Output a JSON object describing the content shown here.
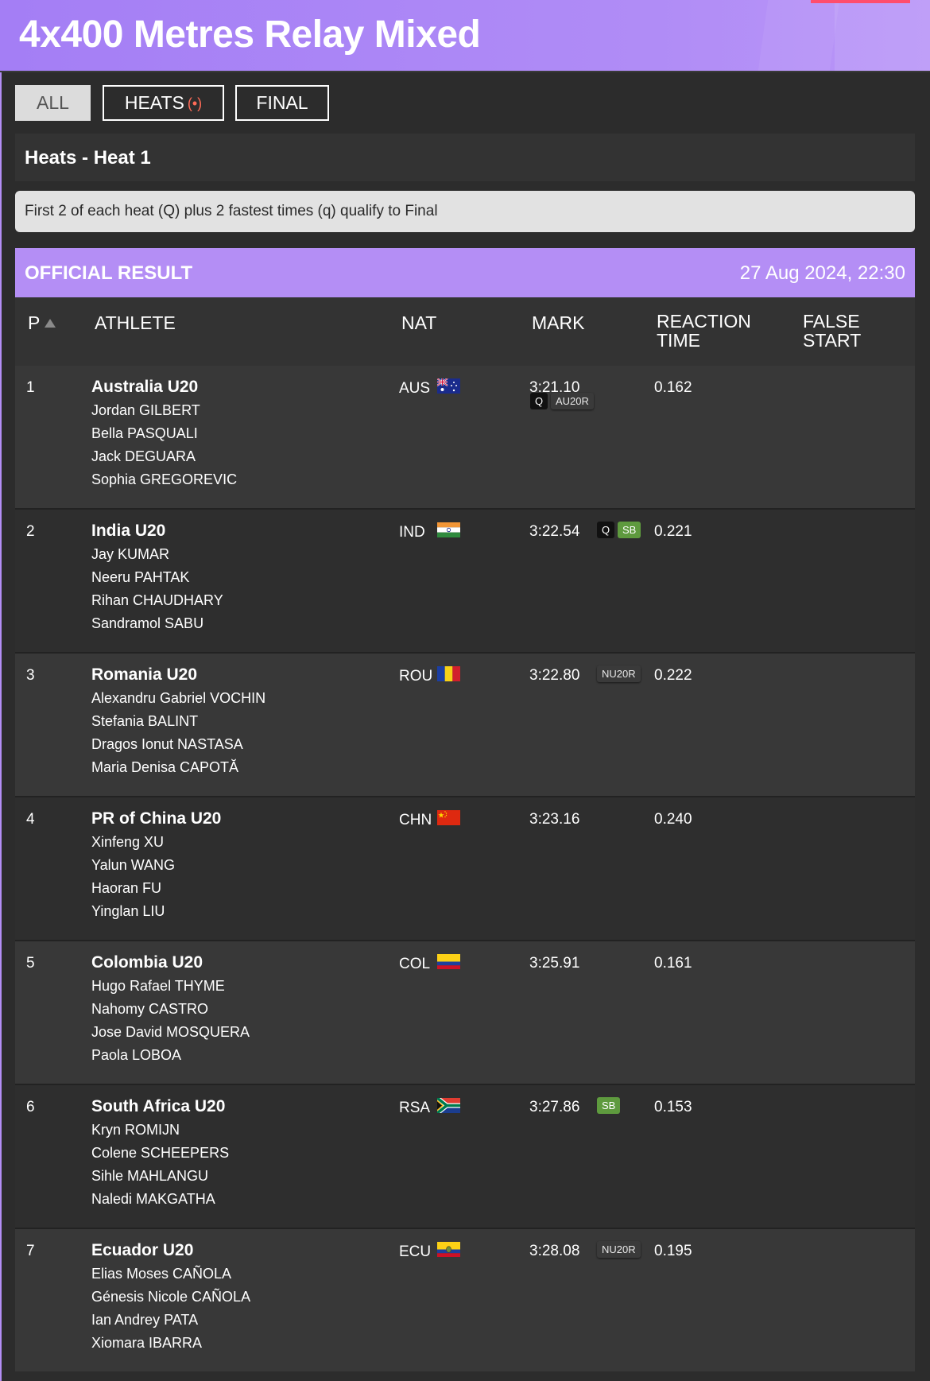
{
  "page": {
    "title": "4x400 Metres Relay Mixed"
  },
  "colors": {
    "accent": "#b48ef5",
    "live": "#ff6b57",
    "sb_badge": "#5e9a3e",
    "q_badge": "#111111"
  },
  "tabs": [
    {
      "label": "ALL",
      "active": true
    },
    {
      "label": "HEATS",
      "live_icon": "(•)"
    },
    {
      "label": "FINAL"
    }
  ],
  "heat": {
    "title": "Heats - Heat 1"
  },
  "info": {
    "text": "First 2 of each heat (Q) plus 2 fastest times (q) qualify to Final"
  },
  "result": {
    "label": "OFFICIAL RESULT",
    "datetime": "27 Aug 2024, 22:30"
  },
  "table": {
    "headers": {
      "p": "P",
      "athlete": "ATHLETE",
      "nat": "NAT",
      "mark": "MARK",
      "reaction_1": "REACTION",
      "reaction_2": "TIME",
      "false_1": "FALSE",
      "false_2": "START"
    },
    "rows": [
      {
        "pos": "1",
        "team": "Australia U20",
        "athletes": [
          "Jordan GILBERT",
          "Bella PASQUALI",
          "Jack DEGUARA",
          "Sophia GREGOREVIC"
        ],
        "nat": "AUS",
        "flag": "flag-aus-icon",
        "mark": "3:21.10",
        "badges": [
          {
            "text": "Q",
            "kind": "q"
          },
          {
            "text": "AU20R",
            "kind": "rec"
          }
        ],
        "badge_layout": "below",
        "reaction": "0.162"
      },
      {
        "pos": "2",
        "team": "India U20",
        "athletes": [
          "Jay KUMAR",
          "Neeru PAHTAK",
          "Rihan CHAUDHARY",
          "Sandramol SABU"
        ],
        "nat": "IND",
        "flag": "flag-ind-icon",
        "mark": "3:22.54",
        "badges": [
          {
            "text": "Q",
            "kind": "q"
          },
          {
            "text": "SB",
            "kind": "sb"
          }
        ],
        "badge_layout": "inline",
        "reaction": "0.221"
      },
      {
        "pos": "3",
        "team": "Romania U20",
        "athletes": [
          "Alexandru Gabriel VOCHIN",
          "Stefania BALINT",
          "Dragos Ionut NASTASA",
          "Maria Denisa CAPOTĂ"
        ],
        "nat": "ROU",
        "flag": "flag-rou-icon",
        "mark": "3:22.80",
        "badges": [
          {
            "text": "NU20R",
            "kind": "rec"
          }
        ],
        "badge_layout": "inline",
        "reaction": "0.222"
      },
      {
        "pos": "4",
        "team": "PR of China U20",
        "athletes": [
          "Xinfeng XU",
          "Yalun WANG",
          "Haoran FU",
          "Yinglan LIU"
        ],
        "nat": "CHN",
        "flag": "flag-chn-icon",
        "mark": "3:23.16",
        "badges": [],
        "badge_layout": "inline",
        "reaction": "0.240"
      },
      {
        "pos": "5",
        "team": "Colombia U20",
        "athletes": [
          "Hugo Rafael THYME",
          "Nahomy CASTRO",
          "Jose David MOSQUERA",
          "Paola LOBOA"
        ],
        "nat": "COL",
        "flag": "flag-col-icon",
        "mark": "3:25.91",
        "badges": [],
        "badge_layout": "inline",
        "reaction": "0.161"
      },
      {
        "pos": "6",
        "team": "South Africa U20",
        "athletes": [
          "Kryn ROMIJN",
          "Colene SCHEEPERS",
          "Sihle MAHLANGU",
          "Naledi MAKGATHA"
        ],
        "nat": "RSA",
        "flag": "flag-rsa-icon",
        "mark": "3:27.86",
        "badges": [
          {
            "text": "SB",
            "kind": "sb"
          }
        ],
        "badge_layout": "inline",
        "reaction": "0.153"
      },
      {
        "pos": "7",
        "team": "Ecuador U20",
        "athletes": [
          "Elias Moses CAÑOLA",
          "Génesis Nicole CAÑOLA",
          "Ian Andrey PATA",
          "Xiomara IBARRA"
        ],
        "nat": "ECU",
        "flag": "flag-ecu-icon",
        "mark": "3:28.08",
        "badges": [
          {
            "text": "NU20R",
            "kind": "rec"
          }
        ],
        "badge_layout": "inline",
        "reaction": "0.195"
      }
    ]
  }
}
